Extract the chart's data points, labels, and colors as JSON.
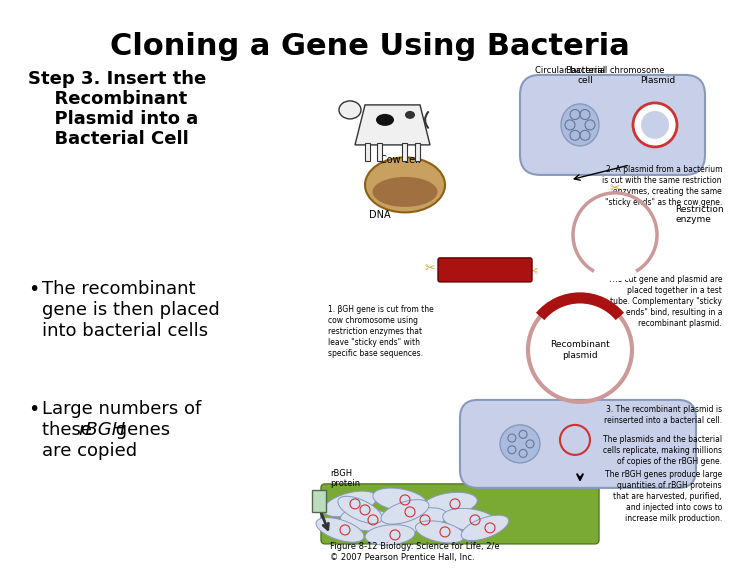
{
  "title": "Cloning a Gene Using Bacteria",
  "title_fontsize": 22,
  "title_fontweight": "bold",
  "background_color": "#ffffff",
  "step_heading_line1": "Step 3. Insert the",
  "step_heading_line2": "  Recombinant",
  "step_heading_line3": "  Plasmid into a",
  "step_heading_line4": "  Bacterial Cell",
  "step_heading_fontsize": 13,
  "step_heading_fontweight": "bold",
  "bullet1_line1": "The recombinant",
  "bullet1_line2": "gene is then placed",
  "bullet1_line3": "into bacterial cells",
  "bullet2_line1": "Large numbers of",
  "bullet2_line2_pre": "these ",
  "bullet2_italic": "rBGH",
  "bullet2_line2_post": " genes",
  "bullet2_line3": "are copied",
  "bullet_fontsize": 13,
  "figure_caption": "Figure 8-12 Biology: Science for Life, 2/e\n© 2007 Pearson Prentice Hall, Inc.",
  "figure_caption_fontsize": 6,
  "ann_circ_bact": "Circular bacterial chromosome",
  "ann_bact_cell": "Bacterial\ncell",
  "ann_plasmid": "Plasmid",
  "ann_cow_cell": "Cow cell",
  "ann_dna": "DNA",
  "ann_restriction": "Restriction\nenzyme",
  "ann_recomb": "Recombinant\nplasmid",
  "ann_rbgh_protein": "rBGH\nprotein",
  "ann1": "1. βGH gene is cut from the\ncow chromosome using\nrestriction enzymes that\nleave \"sticky ends\" with\nspecific base sequences.",
  "ann2": "2. A plasmid from a bacterium\nis cut with the same restriction\nenzymes, creating the same\n\"sticky ends\" as the cow gene.",
  "ann3": "The cut gene and plasmid are\nplaced together in a test\ntube. Complementary \"sticky\nends\" bind, resulting in a\nrecombinant plasmid.",
  "ann4": "3. The recombinant plasmid is\nreinserted into a bacterial cell.",
  "ann5": "The plasmids and the bacterial\ncells replicate, making millions\nof copies of the rBGH gene.",
  "ann6": "The rBGH genes produce large\nquantities of rBGH proteins\nthat are harvested, purified,\nand injected into cows to\nincrease milk production.",
  "color_bg": "#ffffff",
  "color_bact_cell": "#c8cfe8",
  "color_bact_edge": "#8899bb",
  "color_plasmid": "#cc3333",
  "color_gene_red": "#aa1111",
  "color_chrom": "#9ab0cc",
  "color_dna_blob": "#c8a060",
  "color_scissors": "#ccaa33",
  "color_grass": "#88aa44"
}
